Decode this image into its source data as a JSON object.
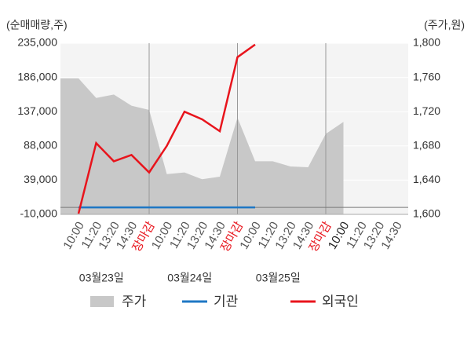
{
  "chart_data": {
    "type": "line",
    "y_axis_label": "(순매매량,주)",
    "y2_axis_label": "(주가,원)",
    "categories": [
      "10:00",
      "11:20",
      "13:20",
      "14:30",
      "장마감",
      "10:00",
      "11:20",
      "13:20",
      "14:30",
      "장마감",
      "10:00",
      "11:20",
      "13:20",
      "14:30",
      "장마감",
      "10:00",
      "11:20",
      "13:20",
      "14:30"
    ],
    "dates": [
      "03월23일",
      "03월24일",
      "03월25일"
    ],
    "ylim": [
      -10000,
      235000
    ],
    "yticks": [
      {
        "value": -10000,
        "label": "-10,000"
      },
      {
        "value": 39000,
        "label": "39,000"
      },
      {
        "value": 88000,
        "label": "88,000"
      },
      {
        "value": 137000,
        "label": "137,000"
      },
      {
        "value": 186000,
        "label": "186,000"
      },
      {
        "value": 235000,
        "label": "235,000"
      }
    ],
    "y2lim": [
      1600,
      1800
    ],
    "y2ticks": [
      {
        "value": 1600,
        "label": "1,600"
      },
      {
        "value": 1640,
        "label": "1,640"
      },
      {
        "value": 1680,
        "label": "1,680"
      },
      {
        "value": 1720,
        "label": "1,720"
      },
      {
        "value": 1760,
        "label": "1,760"
      },
      {
        "value": 1800,
        "label": "1,800"
      }
    ],
    "grid": true,
    "series": [
      {
        "name": "주가",
        "type": "area",
        "axis": "y2",
        "color": "#c8c8c8",
        "values": [
          1759,
          1736,
          1740,
          1727,
          1722,
          1647,
          1649,
          1641,
          1644,
          1713,
          1662,
          1662,
          1656,
          1655,
          1694,
          1708,
          null,
          null,
          null
        ]
      },
      {
        "name": "기관",
        "color": "#1f77c4",
        "values": [
          0,
          0,
          0,
          0,
          0,
          0,
          0,
          0,
          0,
          0,
          0,
          null,
          null,
          null,
          null,
          null,
          null,
          null,
          null
        ]
      },
      {
        "name": "외국인",
        "color": "#e8141c",
        "values": [
          -9000,
          92000,
          66000,
          75000,
          50000,
          88000,
          137000,
          126000,
          109000,
          215000,
          233000,
          null,
          null,
          null,
          null,
          null,
          null,
          null,
          null
        ]
      }
    ]
  }
}
